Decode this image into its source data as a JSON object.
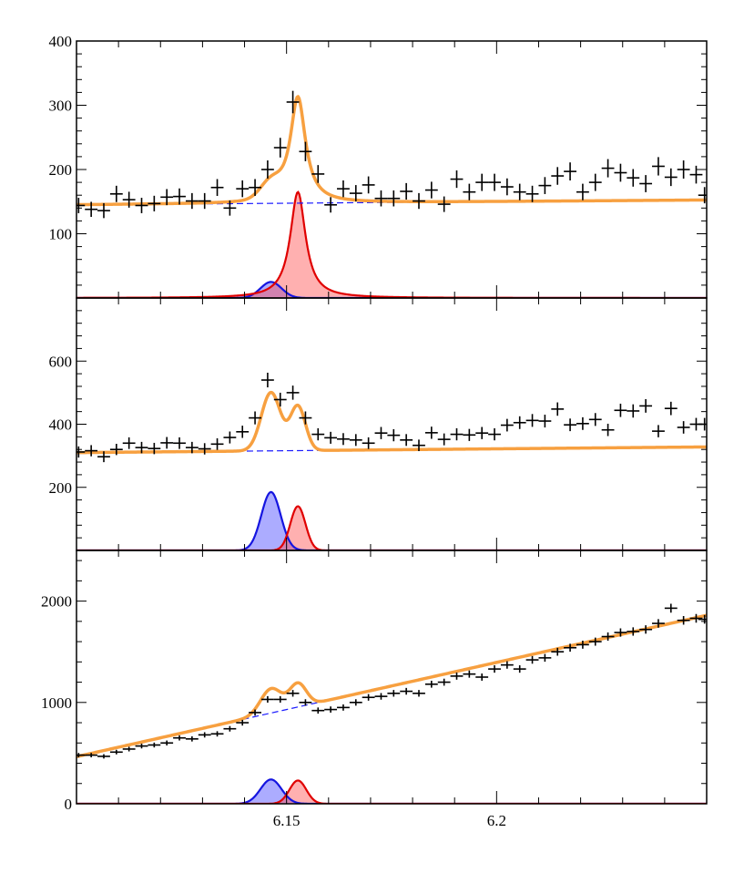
{
  "chart_data": {
    "type": "line",
    "x_ticks": [
      6.15,
      6.2
    ],
    "x_tick_labels": [
      "6.15",
      "6.2"
    ],
    "xlim": [
      6.1,
      6.25
    ],
    "colors": {
      "fit": "#f7a040",
      "background": "#1a1aff",
      "peak1": "#1515e0",
      "peak2": "#e00000",
      "peak1_fill": "rgba(70,70,255,0.45)",
      "peak2_fill": "rgba(255,80,80,0.45)",
      "data": "#000000"
    },
    "panels": [
      {
        "name": "top",
        "ylim": [
          0,
          400
        ],
        "y_ticks": [
          100,
          200,
          300,
          400
        ],
        "y_tick_labels": [
          "100",
          "200",
          "300",
          "400"
        ],
        "background": {
          "a": 145,
          "b": 50
        },
        "peak1": {
          "center": 6.1463,
          "amplitude": 25,
          "sigma": 0.0025
        },
        "peak2": {
          "center": 6.1527,
          "amplitude": 165,
          "gamma": 0.0022
        },
        "points": [
          [
            6.1005,
            144
          ],
          [
            6.1035,
            138
          ],
          [
            6.1065,
            136
          ],
          [
            6.1095,
            162
          ],
          [
            6.1125,
            153
          ],
          [
            6.1155,
            144
          ],
          [
            6.1185,
            147
          ],
          [
            6.1215,
            157
          ],
          [
            6.1245,
            158
          ],
          [
            6.1275,
            151
          ],
          [
            6.1305,
            151
          ],
          [
            6.1335,
            172
          ],
          [
            6.1365,
            140
          ],
          [
            6.1395,
            170
          ],
          [
            6.1425,
            172
          ],
          [
            6.1455,
            200
          ],
          [
            6.1485,
            234
          ],
          [
            6.1515,
            305
          ],
          [
            6.1545,
            228
          ],
          [
            6.1575,
            193
          ],
          [
            6.1605,
            145
          ],
          [
            6.1635,
            170
          ],
          [
            6.1665,
            163
          ],
          [
            6.1695,
            176
          ],
          [
            6.1725,
            155
          ],
          [
            6.1755,
            155
          ],
          [
            6.1785,
            166
          ],
          [
            6.1815,
            151
          ],
          [
            6.1845,
            168
          ],
          [
            6.1875,
            146
          ],
          [
            6.1905,
            185
          ],
          [
            6.1935,
            165
          ],
          [
            6.1965,
            180
          ],
          [
            6.1995,
            180
          ],
          [
            6.2025,
            173
          ],
          [
            6.2055,
            165
          ],
          [
            6.2085,
            162
          ],
          [
            6.2115,
            175
          ],
          [
            6.2145,
            190
          ],
          [
            6.2175,
            197
          ],
          [
            6.2205,
            165
          ],
          [
            6.2235,
            180
          ],
          [
            6.2265,
            202
          ],
          [
            6.2295,
            195
          ],
          [
            6.2325,
            187
          ],
          [
            6.2355,
            178
          ],
          [
            6.2385,
            205
          ],
          [
            6.2415,
            188
          ],
          [
            6.2445,
            200
          ],
          [
            6.2475,
            192
          ],
          [
            6.2495,
            160
          ]
        ]
      },
      {
        "name": "middle",
        "ylim": [
          0,
          800
        ],
        "y_ticks": [
          200,
          400,
          600
        ],
        "y_tick_labels": [
          "200",
          "400",
          "600"
        ],
        "background": {
          "a": 310,
          "b": 120
        },
        "peak1": {
          "center": 6.1463,
          "amplitude": 185,
          "sigma": 0.0023
        },
        "peak2": {
          "center": 6.1527,
          "amplitude": 140,
          "sigma": 0.0018
        },
        "points": [
          [
            6.1005,
            312
          ],
          [
            6.1035,
            316
          ],
          [
            6.1065,
            297
          ],
          [
            6.1095,
            320
          ],
          [
            6.1125,
            340
          ],
          [
            6.1155,
            326
          ],
          [
            6.1185,
            323
          ],
          [
            6.1215,
            341
          ],
          [
            6.1245,
            340
          ],
          [
            6.1275,
            326
          ],
          [
            6.1305,
            322
          ],
          [
            6.1335,
            337
          ],
          [
            6.1365,
            358
          ],
          [
            6.1395,
            376
          ],
          [
            6.1425,
            420
          ],
          [
            6.1455,
            540
          ],
          [
            6.1485,
            478
          ],
          [
            6.1515,
            500
          ],
          [
            6.1545,
            420
          ],
          [
            6.1575,
            368
          ],
          [
            6.1605,
            357
          ],
          [
            6.1635,
            353
          ],
          [
            6.1665,
            350
          ],
          [
            6.1695,
            340
          ],
          [
            6.1725,
            372
          ],
          [
            6.1755,
            365
          ],
          [
            6.1785,
            350
          ],
          [
            6.1815,
            333
          ],
          [
            6.1845,
            373
          ],
          [
            6.1875,
            352
          ],
          [
            6.1905,
            368
          ],
          [
            6.1935,
            366
          ],
          [
            6.1965,
            372
          ],
          [
            6.1995,
            368
          ],
          [
            6.2025,
            397
          ],
          [
            6.2055,
            405
          ],
          [
            6.2085,
            412
          ],
          [
            6.2115,
            410
          ],
          [
            6.2145,
            448
          ],
          [
            6.2175,
            398
          ],
          [
            6.2205,
            402
          ],
          [
            6.2235,
            415
          ],
          [
            6.2265,
            382
          ],
          [
            6.2295,
            444
          ],
          [
            6.2325,
            442
          ],
          [
            6.2355,
            458
          ],
          [
            6.2385,
            378
          ],
          [
            6.2415,
            450
          ],
          [
            6.2445,
            390
          ],
          [
            6.2475,
            400
          ],
          [
            6.2495,
            400
          ]
        ]
      },
      {
        "name": "bottom",
        "ylim": [
          0,
          2500
        ],
        "y_ticks": [
          0,
          1000,
          2000
        ],
        "y_tick_labels": [
          "0",
          "1000",
          "2000"
        ],
        "background": {
          "a": 465,
          "b": 9300
        },
        "peak1": {
          "center": 6.1463,
          "amplitude": 240,
          "sigma": 0.0025
        },
        "peak2": {
          "center": 6.1527,
          "amplitude": 230,
          "sigma": 0.002
        },
        "points": [
          [
            6.1005,
            480
          ],
          [
            6.1035,
            480
          ],
          [
            6.1065,
            468
          ],
          [
            6.1095,
            510
          ],
          [
            6.1125,
            540
          ],
          [
            6.1155,
            570
          ],
          [
            6.1185,
            580
          ],
          [
            6.1215,
            600
          ],
          [
            6.1245,
            650
          ],
          [
            6.1275,
            640
          ],
          [
            6.1305,
            680
          ],
          [
            6.1335,
            690
          ],
          [
            6.1365,
            740
          ],
          [
            6.1395,
            800
          ],
          [
            6.1425,
            900
          ],
          [
            6.1455,
            1030
          ],
          [
            6.1485,
            1030
          ],
          [
            6.1515,
            1090
          ],
          [
            6.1545,
            1000
          ],
          [
            6.1575,
            920
          ],
          [
            6.1605,
            930
          ],
          [
            6.1635,
            950
          ],
          [
            6.1665,
            1000
          ],
          [
            6.1695,
            1050
          ],
          [
            6.1725,
            1060
          ],
          [
            6.1755,
            1090
          ],
          [
            6.1785,
            1110
          ],
          [
            6.1815,
            1090
          ],
          [
            6.1845,
            1180
          ],
          [
            6.1875,
            1200
          ],
          [
            6.1905,
            1260
          ],
          [
            6.1935,
            1280
          ],
          [
            6.1965,
            1250
          ],
          [
            6.1995,
            1330
          ],
          [
            6.2025,
            1370
          ],
          [
            6.2055,
            1330
          ],
          [
            6.2085,
            1420
          ],
          [
            6.2115,
            1440
          ],
          [
            6.2145,
            1500
          ],
          [
            6.2175,
            1540
          ],
          [
            6.2205,
            1570
          ],
          [
            6.2235,
            1600
          ],
          [
            6.2265,
            1650
          ],
          [
            6.2295,
            1690
          ],
          [
            6.2325,
            1700
          ],
          [
            6.2355,
            1720
          ],
          [
            6.2385,
            1780
          ],
          [
            6.2415,
            1930
          ],
          [
            6.2445,
            1810
          ],
          [
            6.2475,
            1830
          ],
          [
            6.2495,
            1820
          ]
        ]
      }
    ]
  }
}
